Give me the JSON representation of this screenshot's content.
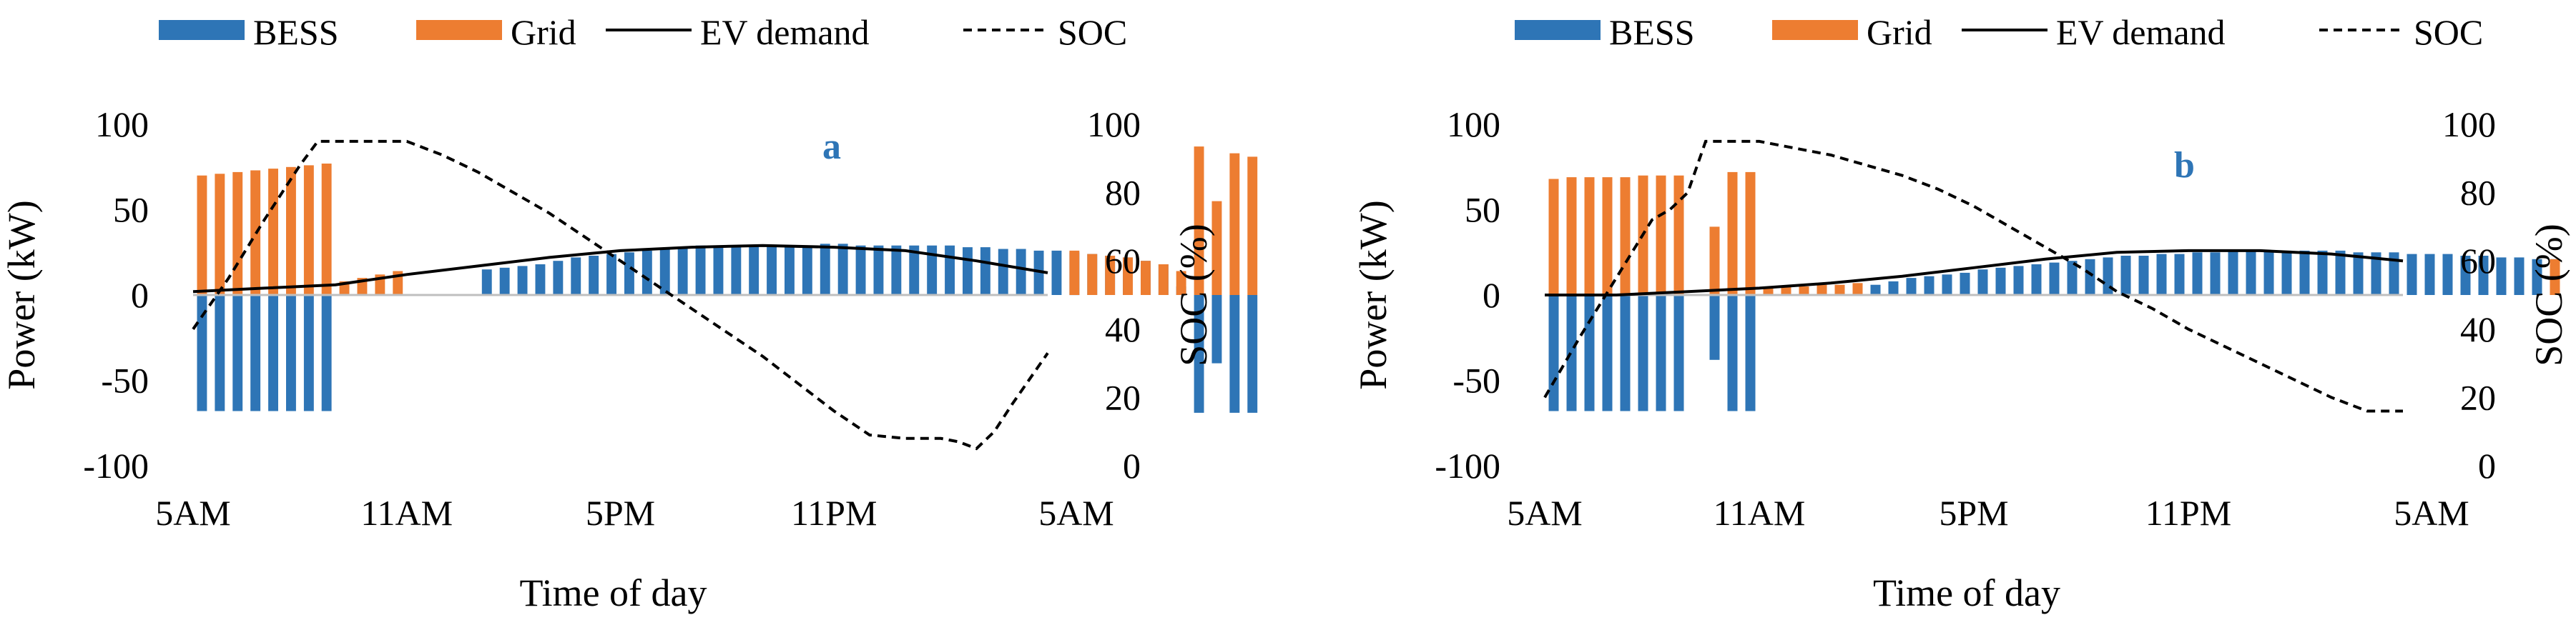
{
  "figure": {
    "legend": {
      "bess": "BESS",
      "grid": "Grid",
      "ev": "EV demand",
      "soc": "SOC"
    },
    "colors": {
      "bess": "#2E75B6",
      "grid": "#ED7D31",
      "ev": "#000000",
      "soc": "#000000"
    }
  },
  "chart_data": [
    {
      "type": "bar",
      "panel_label": "a",
      "xlabel": "Time of day",
      "ylabel": "Power (kW)",
      "y2label": "SOC (%)",
      "ylim": [
        -100,
        100
      ],
      "y2lim": [
        0,
        100
      ],
      "yticks": [
        -100,
        -50,
        0,
        50,
        100
      ],
      "y2ticks": [
        0,
        20,
        40,
        60,
        80,
        100
      ],
      "xtick_labels": [
        "5AM",
        "11AM",
        "5PM",
        "11PM",
        "5AM"
      ],
      "hours": 24,
      "series": [
        {
          "name": "BESS",
          "step_hours": 0.5,
          "start_hour": 0,
          "values": [
            -68,
            -68,
            -68,
            -68,
            -68,
            -68,
            -68,
            -68,
            0,
            0,
            0,
            0,
            0,
            0,
            0,
            0,
            15,
            16,
            17,
            18,
            20,
            22,
            23,
            24,
            25,
            26,
            27,
            28,
            29,
            29,
            29,
            29,
            29,
            29,
            29,
            30,
            30,
            29,
            29,
            29,
            29,
            29,
            29,
            28,
            28,
            27,
            27,
            26,
            26,
            25,
            24,
            23,
            22,
            20,
            18,
            5,
            -69,
            -40,
            -69,
            -69
          ]
        },
        {
          "name": "Grid",
          "step_hours": 0.5,
          "start_hour": 0,
          "values": [
            70,
            71,
            72,
            73,
            74,
            75,
            76,
            77,
            8,
            10,
            12,
            14,
            0,
            0,
            0,
            0,
            0,
            0,
            0,
            0,
            0,
            0,
            0,
            0,
            0,
            0,
            0,
            0,
            0,
            0,
            0,
            0,
            0,
            0,
            0,
            0,
            0,
            0,
            0,
            0,
            0,
            0,
            0,
            0,
            0,
            0,
            0,
            0,
            0,
            26,
            24,
            23,
            22,
            20,
            18,
            14,
            87,
            55,
            83,
            81
          ]
        },
        {
          "name": "EV demand",
          "type": "line",
          "hours": [
            0,
            2,
            4,
            6,
            8,
            10,
            12,
            14,
            16,
            18,
            20,
            22,
            24
          ],
          "values": [
            2,
            4,
            6,
            12,
            17,
            22,
            26,
            28,
            29,
            28,
            26,
            20,
            13
          ]
        },
        {
          "name": "SOC",
          "type": "line",
          "axis": "y2",
          "hours": [
            0,
            1,
            2,
            3,
            3.5,
            4,
            5,
            6,
            7,
            8,
            9,
            10,
            11,
            12,
            13,
            14,
            15,
            16,
            17,
            18,
            19,
            20,
            20.5,
            21,
            21.5,
            22,
            22.5,
            23,
            24
          ],
          "values": [
            40,
            55,
            72,
            88,
            95,
            95,
            95,
            95,
            91,
            86,
            80,
            74,
            67,
            60,
            53,
            46,
            39,
            32,
            24,
            16,
            9,
            8,
            8,
            8,
            7,
            5,
            10,
            18,
            33
          ]
        }
      ]
    },
    {
      "type": "bar",
      "panel_label": "b",
      "xlabel": "Time of day",
      "ylabel": "Power (kW)",
      "y2label": "SOC (%)",
      "ylim": [
        -100,
        100
      ],
      "y2lim": [
        0,
        100
      ],
      "yticks": [
        -100,
        -50,
        0,
        50,
        100
      ],
      "y2ticks": [
        0,
        20,
        40,
        60,
        80,
        100
      ],
      "xtick_labels": [
        "5AM",
        "11AM",
        "5PM",
        "11PM",
        "5AM"
      ],
      "hours": 24,
      "series": [
        {
          "name": "BESS",
          "step_hours": 0.5,
          "start_hour": 0,
          "values": [
            -68,
            -68,
            -68,
            -68,
            -68,
            -68,
            -68,
            -68,
            0,
            -38,
            -68,
            -68,
            0,
            0,
            0,
            0,
            0,
            0,
            6,
            8,
            10,
            11,
            12,
            13,
            15,
            16,
            17,
            18,
            19,
            20,
            21,
            22,
            23,
            23,
            24,
            24,
            25,
            25,
            26,
            26,
            26,
            26,
            26,
            26,
            26,
            25,
            25,
            25,
            24,
            24,
            24,
            23,
            23,
            22,
            22,
            21,
            21,
            0
          ]
        },
        {
          "name": "Grid",
          "step_hours": 0.5,
          "start_hour": 0,
          "values": [
            68,
            69,
            69,
            69,
            69,
            70,
            70,
            70,
            0,
            40,
            72,
            72,
            4,
            5,
            5,
            6,
            6,
            7,
            0,
            0,
            0,
            0,
            0,
            0,
            0,
            0,
            0,
            0,
            0,
            0,
            0,
            0,
            0,
            0,
            0,
            0,
            0,
            0,
            0,
            0,
            0,
            0,
            0,
            0,
            0,
            0,
            0,
            0,
            0,
            0,
            0,
            0,
            0,
            0,
            0,
            0,
            21
          ]
        },
        {
          "name": "EV demand",
          "type": "line",
          "hours": [
            0,
            2,
            4,
            6,
            8,
            10,
            12,
            14,
            16,
            18,
            20,
            22,
            24
          ],
          "values": [
            0,
            0,
            2,
            4,
            7,
            11,
            16,
            21,
            25,
            26,
            26,
            24,
            20
          ]
        },
        {
          "name": "SOC",
          "type": "line",
          "axis": "y2",
          "hours": [
            0,
            1,
            2,
            3,
            3.5,
            4,
            4.5,
            5,
            6,
            7,
            8,
            9,
            10,
            11,
            12,
            13,
            14,
            15,
            16,
            17,
            18,
            19,
            20,
            21,
            22,
            23,
            23.5,
            24
          ],
          "values": [
            20,
            38,
            55,
            72,
            75,
            80,
            95,
            95,
            95,
            93,
            91,
            88,
            85,
            81,
            76,
            70,
            64,
            58,
            51,
            46,
            40,
            35,
            30,
            25,
            20,
            16,
            16,
            16
          ]
        }
      ]
    }
  ]
}
